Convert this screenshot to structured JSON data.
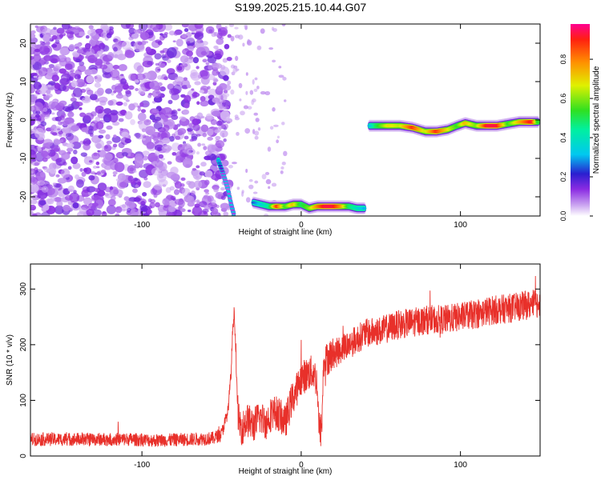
{
  "title": "S199.2025.215.10.44.G07",
  "chart_data": [
    {
      "type": "heatmap",
      "xlabel": "Height of straight line (km)",
      "ylabel": "Frequency (Hz)",
      "xlim": [
        -170,
        150
      ],
      "ylim": [
        -25,
        25
      ],
      "xticks": [
        -100,
        0,
        100
      ],
      "yticks": [
        -20,
        -10,
        0,
        10,
        20
      ],
      "colorbar": {
        "label": "Normalized spectral amplitude",
        "range": [
          0,
          0.98
        ],
        "ticks": [
          0,
          0.2,
          0.4,
          0.6,
          0.8
        ]
      },
      "noise_region": {
        "x_range": [
          -170,
          -55
        ],
        "y_range": [
          -25,
          25
        ],
        "amplitude": 0.1
      },
      "traces": [
        {
          "x": [
            -52,
            -49,
            -46,
            -44,
            -42
          ],
          "y": [
            -10.5,
            -14,
            -18,
            -22,
            -25
          ],
          "amplitude": [
            0.3,
            0.12,
            0.1,
            0.12,
            0.12
          ]
        },
        {
          "x": [
            -30,
            -25,
            -20,
            -15,
            -10,
            -5,
            0,
            5,
            10,
            15,
            20,
            25,
            30,
            35,
            40
          ],
          "y": [
            -21.5,
            -22,
            -22.5,
            -22.5,
            -22.5,
            -22,
            -22,
            -23,
            -22.5,
            -22.5,
            -22.5,
            -22.5,
            -22.5,
            -23,
            -23
          ],
          "amplitude": [
            0.25,
            0.35,
            0.45,
            0.9,
            0.55,
            0.75,
            0.5,
            0.6,
            0.8,
            0.95,
            0.95,
            0.8,
            0.5,
            0.4,
            0.3
          ]
        },
        {
          "x": [
            43,
            47,
            55,
            62,
            70,
            78,
            85,
            92,
            98,
            103,
            110,
            117,
            123,
            130,
            137,
            145,
            149
          ],
          "y": [
            -1.5,
            -1.5,
            -1.5,
            -1.5,
            -2,
            -3,
            -3,
            -2.5,
            -1.5,
            -0.8,
            -1.5,
            -1.5,
            -1.5,
            -1,
            -0.5,
            -0.5,
            -0.5
          ],
          "amplitude": [
            0.3,
            0.5,
            0.7,
            0.65,
            0.9,
            0.65,
            0.9,
            0.7,
            0.55,
            0.75,
            0.6,
            0.95,
            0.95,
            0.55,
            0.75,
            0.95,
            0.5
          ]
        }
      ]
    },
    {
      "type": "line",
      "xlabel": "Height of straight line (km)",
      "ylabel": "SNR (10 * v/v)",
      "xlim": [
        -170,
        150
      ],
      "ylim": [
        0,
        345
      ],
      "xticks": [
        -100,
        0,
        100
      ],
      "yticks": [
        0,
        100,
        200,
        300
      ],
      "color": "#e8302a",
      "series": [
        {
          "x": [
            -170,
            -150,
            -130,
            -110,
            -90,
            -70,
            -55,
            -50,
            -46,
            -44,
            -43,
            -42,
            -41,
            -40,
            -39,
            -37,
            -34,
            -30,
            -26,
            -22,
            -18,
            -14,
            -10,
            -6,
            -2,
            0,
            3,
            6,
            8,
            10,
            11,
            12,
            13,
            14,
            15,
            18,
            22,
            26,
            30,
            40,
            50,
            60,
            70,
            80,
            90,
            100,
            110,
            120,
            130,
            140,
            150
          ],
          "y": [
            30,
            30,
            30,
            30,
            28,
            30,
            32,
            40,
            80,
            150,
            230,
            260,
            180,
            90,
            60,
            50,
            65,
            55,
            70,
            60,
            80,
            75,
            60,
            100,
            125,
            140,
            145,
            150,
            150,
            130,
            60,
            40,
            60,
            160,
            170,
            180,
            185,
            195,
            200,
            220,
            225,
            235,
            240,
            245,
            245,
            250,
            255,
            262,
            265,
            270,
            275
          ]
        }
      ],
      "noise_amplitude": 12
    }
  ]
}
